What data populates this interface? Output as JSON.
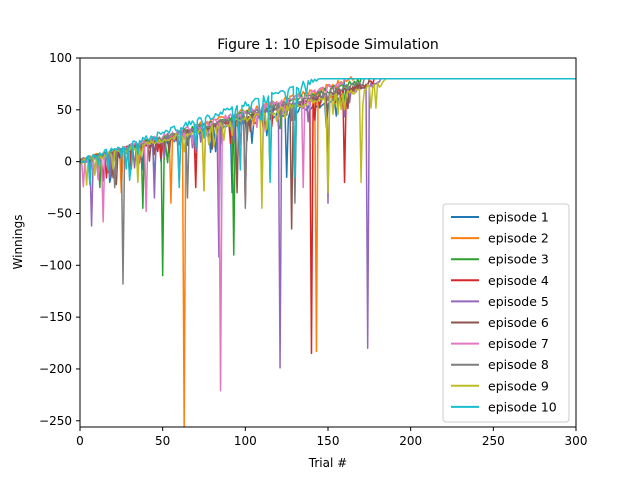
{
  "chart_data": {
    "type": "line",
    "title": "Figure 1: 10 Episode Simulation",
    "xlabel": "Trial #",
    "ylabel": "Winnings",
    "xlim": [
      0,
      300
    ],
    "ylim": [
      -256,
      100
    ],
    "xticks": [
      0,
      50,
      100,
      150,
      200,
      250,
      300
    ],
    "yticks": [
      100,
      50,
      0,
      -50,
      -100,
      -150,
      -200,
      -250
    ],
    "xtick_labels": [
      "0",
      "50",
      "100",
      "150",
      "200",
      "250",
      "300"
    ],
    "ytick_labels": [
      "100",
      "50",
      "0",
      "−50",
      "−100",
      "−150",
      "−200",
      "−250"
    ],
    "grid": false,
    "legend_position": "lower-right",
    "series": [
      {
        "name": "episode 1",
        "color": "#1f77b4",
        "end_trial": 160,
        "trend_end": 60,
        "dips": [
          [
            18,
            -20
          ],
          [
            45,
            -18
          ],
          [
            92,
            -30
          ],
          [
            125,
            -15
          ]
        ]
      },
      {
        "name": "episode 2",
        "color": "#ff7f0e",
        "end_trial": 166,
        "trend_end": 80,
        "dips": [
          [
            25,
            -30
          ],
          [
            55,
            -40
          ],
          [
            63,
            -256
          ],
          [
            75,
            -28
          ],
          [
            143,
            -183
          ]
        ]
      },
      {
        "name": "episode 3",
        "color": "#2ca02c",
        "end_trial": 170,
        "trend_end": 78,
        "dips": [
          [
            12,
            -25
          ],
          [
            38,
            -45
          ],
          [
            50,
            -110
          ],
          [
            93,
            -90
          ],
          [
            115,
            -17
          ],
          [
            130,
            -20
          ]
        ]
      },
      {
        "name": "episode 4",
        "color": "#d62728",
        "end_trial": 178,
        "trend_end": 76,
        "dips": [
          [
            30,
            -15
          ],
          [
            70,
            -25
          ],
          [
            100,
            -40
          ],
          [
            140,
            -185
          ],
          [
            160,
            -20
          ]
        ]
      },
      {
        "name": "episode 5",
        "color": "#9467bd",
        "end_trial": 182,
        "trend_end": 76,
        "dips": [
          [
            7,
            -62
          ],
          [
            45,
            -35
          ],
          [
            84,
            -92
          ],
          [
            121,
            -199
          ],
          [
            150,
            -40
          ],
          [
            174,
            -180
          ]
        ]
      },
      {
        "name": "episode 6",
        "color": "#8c564b",
        "end_trial": 175,
        "trend_end": 75,
        "dips": [
          [
            22,
            -22
          ],
          [
            60,
            -20
          ],
          [
            95,
            -30
          ],
          [
            128,
            -65
          ],
          [
            150,
            -15
          ]
        ]
      },
      {
        "name": "episode 7",
        "color": "#e377c2",
        "end_trial": 160,
        "trend_end": 76,
        "dips": [
          [
            14,
            -58
          ],
          [
            40,
            -48
          ],
          [
            85,
            -221
          ],
          [
            110,
            -30
          ],
          [
            135,
            -25
          ]
        ]
      },
      {
        "name": "episode 8",
        "color": "#7f7f7f",
        "end_trial": 172,
        "trend_end": 77,
        "dips": [
          [
            21,
            -25
          ],
          [
            26,
            -118
          ],
          [
            65,
            -35
          ],
          [
            100,
            -45
          ],
          [
            130,
            -40
          ]
        ]
      },
      {
        "name": "episode 9",
        "color": "#bcbd22",
        "end_trial": 185,
        "trend_end": 76,
        "dips": [
          [
            35,
            -20
          ],
          [
            75,
            -28
          ],
          [
            110,
            -45
          ],
          [
            150,
            -30
          ],
          [
            170,
            -20
          ]
        ]
      },
      {
        "name": "episode 10",
        "color": "#17becf",
        "end_trial": 145,
        "trend_end": 80,
        "dips": [
          [
            30,
            -18
          ],
          [
            60,
            -25
          ],
          [
            97,
            -8
          ],
          [
            115,
            -20
          ],
          [
            130,
            -15
          ]
        ]
      }
    ],
    "final_value": 80
  }
}
